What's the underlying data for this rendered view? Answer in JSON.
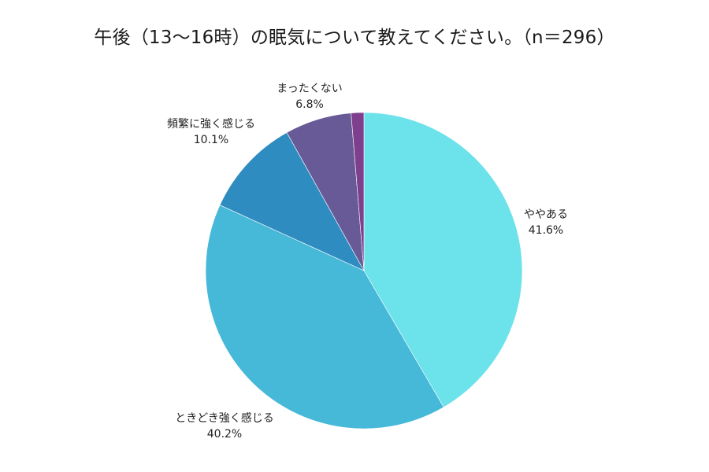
{
  "title": "午後（13〜16時）の眠気について教えてください。（n＝296）",
  "chart_data": {
    "type": "pie",
    "title": "午後（13〜16時）の眠気について教えてください。（n＝296）",
    "n": 296,
    "start_angle": "12 o'clock",
    "direction": "clockwise",
    "categories": [
      "ややある",
      "ときどき強く感じる",
      "頻繁に強く感じる",
      "まったくない",
      "（未表示）"
    ],
    "values": [
      41.6,
      40.2,
      10.1,
      6.8,
      1.3
    ],
    "colors": [
      "#6CE2EB",
      "#46B8D8",
      "#2F8CC0",
      "#675A96",
      "#7E3F8E"
    ],
    "labels": [
      {
        "name": "ややある",
        "value_label": "41.6%"
      },
      {
        "name": "ときどき強く感じる",
        "value_label": "40.2%"
      },
      {
        "name": "頻繁に強く感じる",
        "value_label": "10.1%"
      },
      {
        "name": "まったくない",
        "value_label": "6.8%"
      }
    ],
    "legend": "none (labels outside slices)"
  }
}
